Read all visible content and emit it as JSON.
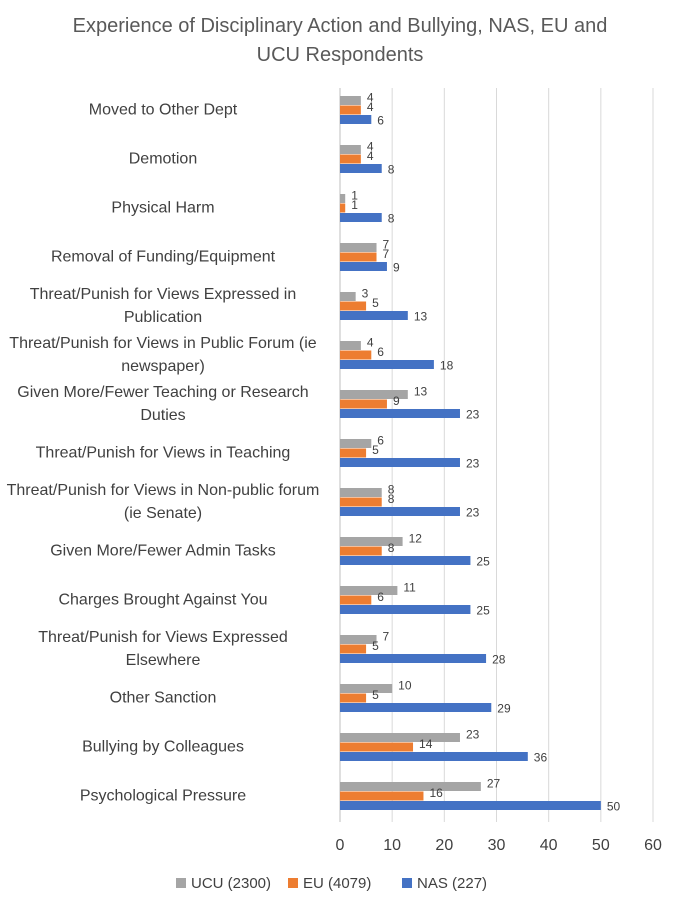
{
  "chart_data": {
    "type": "bar",
    "orientation": "horizontal",
    "title": "Experience of Disciplinary Action and Bullying, NAS, EU and UCU Respondents",
    "categories": [
      "Moved to Other Dept",
      "Demotion",
      "Physical Harm",
      "Removal of Funding/Equipment",
      "Threat/Punish for Views Expressed in Publication",
      "Threat/Punish for Views in Public Forum (ie newspaper)",
      "Given More/Fewer Teaching or Research Duties",
      "Threat/Punish for Views in Teaching",
      "Threat/Punish for Views in Non-public forum (ie Senate)",
      "Given More/Fewer Admin Tasks",
      "Charges Brought Against You",
      "Threat/Punish for Views Expressed Elsewhere",
      "Other Sanction",
      "Bullying by Colleagues",
      "Psychological Pressure"
    ],
    "series": [
      {
        "name": "UCU (2300)",
        "color": "#a5a5a5",
        "values": [
          4,
          4,
          1,
          7,
          3,
          4,
          13,
          6,
          8,
          12,
          11,
          7,
          10,
          23,
          27
        ]
      },
      {
        "name": "EU (4079)",
        "color": "#ed7d31",
        "values": [
          4,
          4,
          1,
          7,
          5,
          6,
          9,
          5,
          8,
          8,
          6,
          5,
          5,
          14,
          16
        ]
      },
      {
        "name": "NAS (227)",
        "color": "#4472c4",
        "values": [
          6,
          8,
          8,
          9,
          13,
          18,
          23,
          23,
          23,
          25,
          25,
          28,
          29,
          36,
          50
        ]
      }
    ],
    "xlim": [
      0,
      60
    ],
    "xticks": [
      0,
      10,
      20,
      30,
      40,
      50,
      60
    ],
    "grid": true,
    "legend": "bottom"
  }
}
